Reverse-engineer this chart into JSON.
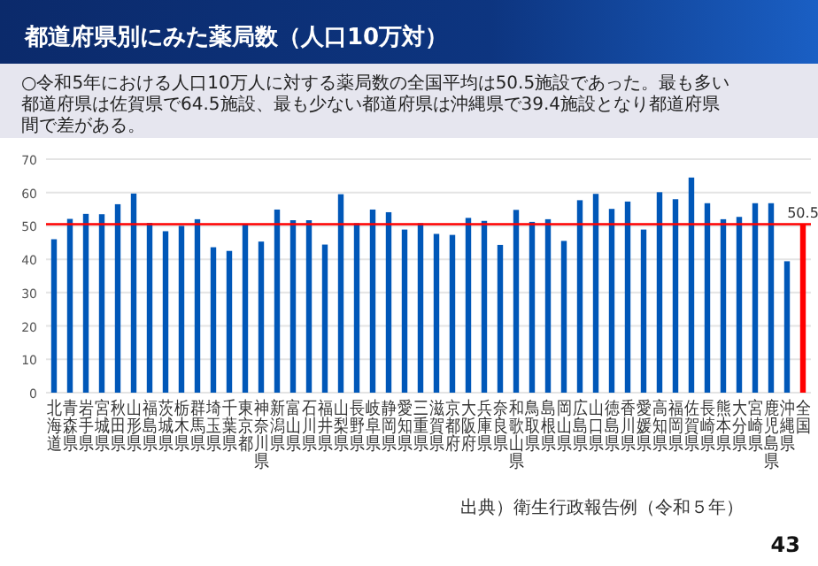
{
  "chart_data": {
    "type": "bar",
    "title": "都道府県別にみた薬局数（人口10万対）",
    "subtitle": "○令和5年における人口10万人に対する薬局数の全国平均は50.5施設であった。最も多い都道府県は佐賀県で64.5施設、最も少ない都道府県は沖縄県で39.4施設となり都道府県間で差がある。",
    "categories": [
      "北海道",
      "青森県",
      "岩手県",
      "宮城県",
      "秋田県",
      "山形県",
      "福島県",
      "茨城県",
      "栃木県",
      "群馬県",
      "埼玉県",
      "千葉県",
      "東京都",
      "神奈川県",
      "新潟県",
      "富山県",
      "石川県",
      "福井県",
      "山梨県",
      "長野県",
      "岐阜県",
      "静岡県",
      "愛知県",
      "三重県",
      "滋賀県",
      "京都府",
      "大阪府",
      "兵庫県",
      "奈良県",
      "和歌山県",
      "鳥取県",
      "島根県",
      "岡山県",
      "広島県",
      "山口県",
      "徳島県",
      "香川県",
      "愛媛県",
      "高知県",
      "福岡県",
      "佐賀県",
      "長崎県",
      "熊本県",
      "大分県",
      "宮崎県",
      "鹿児島県",
      "沖縄県",
      "全国"
    ],
    "values": [
      46.0,
      52.1,
      53.6,
      53.5,
      56.5,
      59.7,
      50.9,
      48.4,
      50.0,
      52.0,
      43.6,
      42.5,
      50.4,
      45.3,
      54.9,
      51.7,
      51.7,
      44.4,
      59.5,
      50.8,
      54.9,
      54.1,
      48.9,
      50.8,
      47.6,
      47.3,
      52.4,
      51.5,
      44.3,
      54.8,
      51.2,
      52.0,
      45.5,
      57.7,
      59.6,
      55.1,
      57.3,
      48.9,
      60.1,
      58.0,
      64.5,
      56.8,
      52.0,
      52.7,
      56.8,
      56.8,
      39.4,
      50.5
    ],
    "colors": [
      "#0057b8",
      "#0057b8",
      "#0057b8",
      "#0057b8",
      "#0057b8",
      "#0057b8",
      "#0057b8",
      "#0057b8",
      "#0057b8",
      "#0057b8",
      "#0057b8",
      "#0057b8",
      "#0057b8",
      "#0057b8",
      "#0057b8",
      "#0057b8",
      "#0057b8",
      "#0057b8",
      "#0057b8",
      "#0057b8",
      "#0057b8",
      "#0057b8",
      "#0057b8",
      "#0057b8",
      "#0057b8",
      "#0057b8",
      "#0057b8",
      "#0057b8",
      "#0057b8",
      "#0057b8",
      "#0057b8",
      "#0057b8",
      "#0057b8",
      "#0057b8",
      "#0057b8",
      "#0057b8",
      "#0057b8",
      "#0057b8",
      "#0057b8",
      "#0057b8",
      "#0057b8",
      "#0057b8",
      "#0057b8",
      "#0057b8",
      "#0057b8",
      "#0057b8",
      "#0057b8",
      "#ff0000"
    ],
    "value_labels": [
      null,
      null,
      null,
      null,
      null,
      null,
      null,
      null,
      null,
      null,
      null,
      null,
      null,
      null,
      null,
      null,
      null,
      null,
      null,
      null,
      null,
      null,
      null,
      null,
      null,
      null,
      null,
      null,
      null,
      null,
      null,
      null,
      null,
      null,
      null,
      null,
      null,
      null,
      null,
      null,
      null,
      null,
      null,
      null,
      null,
      null,
      null,
      "50.5"
    ],
    "ylim": [
      0,
      70
    ],
    "yticks": [
      0,
      10,
      20,
      30,
      40,
      50,
      60,
      70
    ],
    "grid": "y",
    "ref_lines": [
      {
        "axis": "y",
        "value": 50.5,
        "color": "#ff0000"
      }
    ],
    "annotations": [
      "出典）衛生行政報告例（令和５年）",
      "43"
    ]
  }
}
